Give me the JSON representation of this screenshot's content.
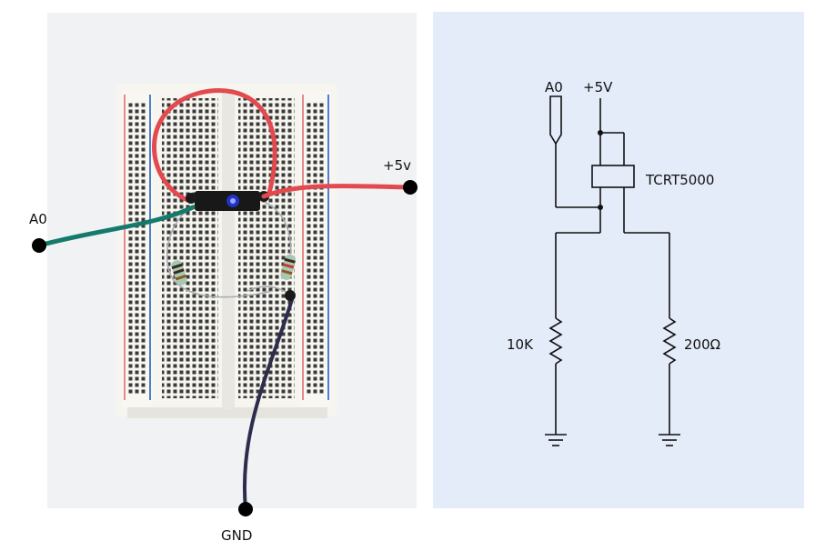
{
  "breadboard": {
    "wire_labels": {
      "a0": "A0",
      "vcc": "+5v",
      "gnd": "GND"
    },
    "colors": {
      "red_wire": "#e24a4f",
      "green_wire": "#157a6b",
      "navy_wire": "#2c2d4d",
      "sensor": "#181818",
      "sensor_led": "#2033c4",
      "board": "#f6f5ef",
      "rail_red": "#e7898a",
      "rail_blue": "#4d7ed0"
    }
  },
  "schematic": {
    "labels": {
      "a0": "A0",
      "vcc": "+5V",
      "sensor": "TCRT5000",
      "r_left": "10K",
      "r_right": "200Ω"
    }
  }
}
